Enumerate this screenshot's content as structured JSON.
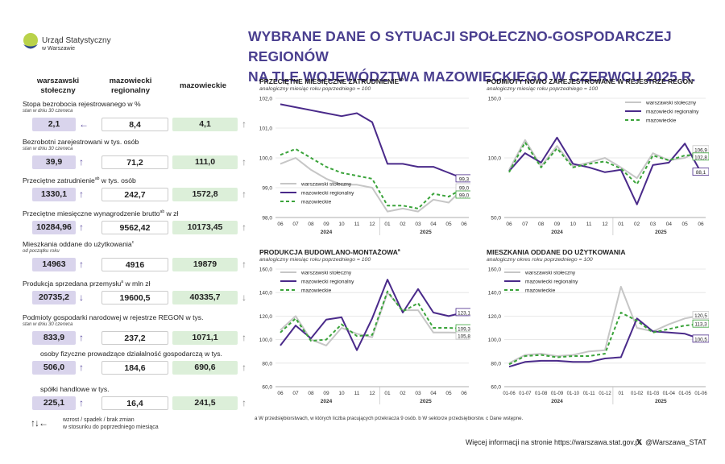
{
  "logo": {
    "line1": "Urząd Statystyczny",
    "line2": "w Warszawie"
  },
  "title_line1": "WYBRANE DANE O SYTUACJI SPOŁECZNO-GOSPODARCZEJ REGIONÓW",
  "title_line2": "NA TLE WOJEWÓDZTWA MAZOWIECKIEGO W CZERWCU 2025 R.",
  "columns": {
    "c1a": "warszawski",
    "c1b": "stołeczny",
    "c2a": "mazowiecki",
    "c2b": "regionalny",
    "c3": "mazowieckie"
  },
  "indicators": [
    {
      "label": "Stopa bezrobocia rejestrowanego w %",
      "sub": "stan w dniu 30 czerwca",
      "v1": "2,1",
      "a1": "←",
      "v2": "8,4",
      "a2": "↑",
      "v3": "4,1",
      "a3": "↑"
    },
    {
      "label": "Bezrobotni zarejestrowani w tys. osób",
      "sub": "stan w dniu 30 czerwca",
      "v1": "39,9",
      "a1": "↑",
      "v2": "71,2",
      "a2": "↑",
      "v3": "111,0",
      "a3": "↑"
    },
    {
      "label": "Przeciętne zatrudnienie",
      "sup": "ab",
      "label2": " w tys. osób",
      "sub": "",
      "v1": "1330,1",
      "a1": "↑",
      "v2": "242,7",
      "a2": "↓",
      "v3": "1572,8",
      "a3": "↑"
    },
    {
      "label": "Przeciętne miesięczne wynagrodzenie brutto",
      "sup": "ab",
      "label2": " w zł",
      "sub": "",
      "v1": "10284,96",
      "a1": "↑",
      "v2": "9562,42",
      "a2": "↑",
      "v3": "10173,45",
      "a3": "↑"
    },
    {
      "label": "Mieszkania oddane do użytkowania",
      "sup": "c",
      "label2": "",
      "sub": "od początku roku",
      "v1": "14963",
      "a1": "↑",
      "v2": "4916",
      "a2": "↑",
      "v3": "19879",
      "a3": "↑"
    },
    {
      "label": "Produkcja sprzedana przemysłu",
      "sup": "a",
      "label2": " w mln zł",
      "sub": "",
      "v1": "20735,2",
      "a1": "↓",
      "v2": "19600,5",
      "a2": "↑",
      "v3": "40335,7",
      "a3": "↓"
    },
    {
      "label": "Podmioty gospodarki narodowej w rejestrze REGON w tys.",
      "sub": "stan w dniu 30 czerwca",
      "v1": "833,9",
      "a1": "↑",
      "v2": "237,2",
      "a2": "↑",
      "v3": "1071,1",
      "a3": "↑"
    },
    {
      "label": "osoby fizyczne prowadzące działalność gospodarczą w tys.",
      "sub": "",
      "v1": "506,0",
      "a1": "↑",
      "v2": "184,6",
      "a2": "↑",
      "v3": "690,6",
      "a3": "↑"
    },
    {
      "label": "spółki handlowe w tys.",
      "sub": "",
      "v1": "225,1",
      "a1": "↑",
      "v2": "16,4",
      "a2": "↑",
      "v3": "241,5",
      "a3": "↑"
    }
  ],
  "arrow_legend": {
    "arrows": "↑↓←",
    "line1": "wzrost / spadek / brak zmian",
    "line2": "w stosunku do poprzedniego miesiąca"
  },
  "colors": {
    "warszawski": "#c6c6c6",
    "mazowiecki": "#4a2a8a",
    "mazowieckie": "#3aa33a",
    "accent": "#4a3f8f"
  },
  "chart_data": [
    {
      "type": "line",
      "id": "zatr",
      "title": "PRZECIĘTNE MIESIĘCZNE ZATRUDNIENIE",
      "title_sup": "ab",
      "subtitle": "analogiczny miesiąc roku poprzedniego = 100",
      "x": [
        "06",
        "07",
        "08",
        "09",
        "10",
        "11",
        "12",
        "01",
        "02",
        "03",
        "04",
        "05",
        "06"
      ],
      "years": [
        "2024",
        "2025"
      ],
      "ylim": [
        98.0,
        102.0
      ],
      "yticks": [
        "98,0",
        "99,0",
        "100,0",
        "101,0",
        "102,0"
      ],
      "series": [
        {
          "name": "warszawski stołeczny",
          "values": [
            99.8,
            100.0,
            99.6,
            99.3,
            99.1,
            99.1,
            99.0,
            98.2,
            98.3,
            98.2,
            98.6,
            98.5,
            99.0
          ],
          "end_label": "99,0"
        },
        {
          "name": "mazowiecki regionalny",
          "values": [
            101.8,
            101.7,
            101.6,
            101.5,
            101.4,
            101.5,
            101.2,
            99.8,
            99.8,
            99.7,
            99.7,
            99.5,
            99.3
          ],
          "end_label": "99,3"
        },
        {
          "name": "mazowieckie",
          "values": [
            100.1,
            100.3,
            100.0,
            99.7,
            99.5,
            99.4,
            99.3,
            98.4,
            98.4,
            98.3,
            98.8,
            98.7,
            99.0
          ],
          "end_label": "99,0"
        }
      ]
    },
    {
      "type": "line",
      "id": "regon",
      "title": "PODMIOTY NOWO ZAREJESTROWANE W REJESTRZE REGON",
      "title_sup": "",
      "subtitle": "analogiczny miesiąc roku poprzedniego = 100",
      "x": [
        "06",
        "07",
        "08",
        "09",
        "10",
        "11",
        "12",
        "01",
        "02",
        "03",
        "04",
        "05",
        "06"
      ],
      "years": [
        "2024",
        "2025"
      ],
      "ylim": [
        50.0,
        150.0
      ],
      "yticks": [
        "50,0",
        "100,0",
        "150,0"
      ],
      "series": [
        {
          "name": "warszawski stołeczny",
          "values": [
            90,
            115,
            93,
            110,
            93,
            96,
            100,
            92,
            83,
            104,
            98,
            100,
            106.9
          ],
          "end_label": "106,9"
        },
        {
          "name": "mazowiecki regionalny",
          "values": [
            89,
            104,
            96,
            117,
            95,
            92,
            88,
            90,
            61,
            94,
            96,
            112,
            88.1
          ],
          "end_label": "88,1"
        },
        {
          "name": "mazowieckie",
          "values": [
            88,
            113,
            92,
            108,
            92,
            95,
            97,
            91,
            78,
            102,
            98,
            102,
            102.8
          ],
          "end_label": "102,8"
        }
      ]
    },
    {
      "type": "line",
      "id": "prod",
      "title": "PRODUKCJA BUDOWLANO-MONTAŻOWA",
      "title_sup": "a",
      "subtitle": "analogiczny miesiąc roku poprzedniego = 100",
      "x": [
        "06",
        "07",
        "08",
        "09",
        "10",
        "11",
        "12",
        "01",
        "02",
        "03",
        "04",
        "05",
        "06"
      ],
      "years": [
        "2024",
        "2025"
      ],
      "ylim": [
        60.0,
        160.0
      ],
      "yticks": [
        "60,0",
        "80,0",
        "100,0",
        "120,0",
        "140,0",
        "160,0"
      ],
      "series": [
        {
          "name": "warszawski stołeczny",
          "values": [
            108,
            120,
            100,
            95,
            110,
            105,
            102,
            140,
            125,
            125,
            106,
            106,
            105.8
          ],
          "end_label": "105,8"
        },
        {
          "name": "mazowiecki regionalny",
          "values": [
            95,
            112,
            101,
            117,
            119,
            91,
            118,
            151,
            123,
            143,
            123,
            120,
            123.1
          ],
          "end_label": "123,1"
        },
        {
          "name": "mazowieckie",
          "values": [
            106,
            118,
            99,
            100,
            113,
            103,
            104,
            141,
            124,
            131,
            110,
            110,
            109.3
          ],
          "end_label": "109,3"
        }
      ]
    },
    {
      "type": "line",
      "id": "mieszk",
      "title": "MIESZKANIA ODDANE DO UŻYTKOWANIA",
      "title_sup": "",
      "subtitle": "analogiczny okres roku poprzedniego = 100",
      "x": [
        "01-06",
        "01-07",
        "01-08",
        "01-09",
        "01-10",
        "01-11",
        "01-12",
        "01",
        "01-02",
        "01-03",
        "01-04",
        "01-05",
        "01-06"
      ],
      "years": [
        "2024",
        "2025"
      ],
      "ylim": [
        60.0,
        160.0
      ],
      "yticks": [
        "60,0",
        "80,0",
        "100,0",
        "120,0",
        "140,0",
        "160,0"
      ],
      "series": [
        {
          "name": "warszawski stołeczny",
          "values": [
            80,
            87,
            88,
            86,
            87,
            90,
            91,
            145,
            110,
            107,
            113,
            118,
            120.5
          ],
          "end_label": "120,5"
        },
        {
          "name": "mazowiecki regionalny",
          "values": [
            77,
            81,
            82,
            82,
            81,
            81,
            84,
            85,
            118,
            107,
            106,
            105,
            100.5
          ],
          "end_label": "100,5"
        },
        {
          "name": "mazowieckie",
          "values": [
            79,
            86,
            87,
            85,
            86,
            86,
            88,
            123,
            116,
            106,
            109,
            112,
            113.3
          ],
          "end_label": "113,3"
        }
      ]
    }
  ],
  "notes": "a W przedsiębiorstwach, w których liczba pracujących przekracza 9 osób.   b W sektorze przedsiębiorstw.   c Dane wstępne.",
  "footer": "Więcej informacji na stronie https://warszawa.stat.gov.pl",
  "footer_x": "@Warszawa_STAT"
}
